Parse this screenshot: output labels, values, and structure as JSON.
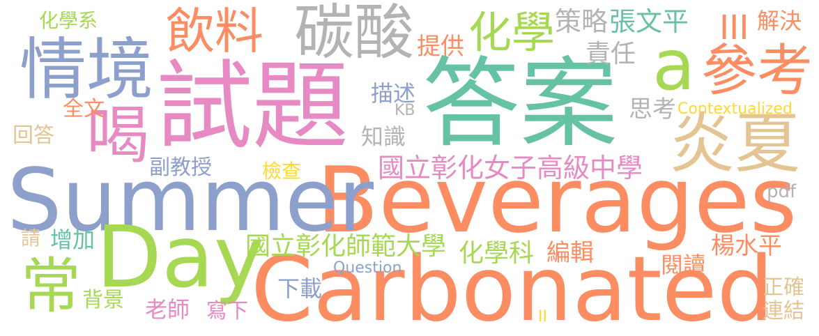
{
  "palette": {
    "teal": "#66C2A5",
    "orange": "#FC8D62",
    "blue": "#8DA0CB",
    "pink": "#E78AC3",
    "green": "#A6D854",
    "yellow": "#FFD92F",
    "tan": "#E5C494",
    "gray": "#B3B3B3"
  },
  "words": [
    {
      "id": "w-answer",
      "text": "答案",
      "color": "#66C2A5"
    },
    {
      "id": "w-test",
      "text": "試題",
      "color": "#E78AC3"
    },
    {
      "id": "w-beverages",
      "text": "Beverages",
      "color": "#FC8D62"
    },
    {
      "id": "w-summer",
      "text": "Summer",
      "color": "#8DA0CB"
    },
    {
      "id": "w-carbonated",
      "text": "Carbonated",
      "color": "#FC8D62"
    },
    {
      "id": "w-day",
      "text": "Day",
      "color": "#A6D854"
    },
    {
      "id": "w-carbonic-acid",
      "text": "碳酸",
      "color": "#B3B3B3"
    },
    {
      "id": "w-drinks",
      "text": "飲料",
      "color": "#FC8D62"
    },
    {
      "id": "w-context",
      "text": "情境",
      "color": "#8DA0CB"
    },
    {
      "id": "w-a",
      "text": "a",
      "color": "#A6D854"
    },
    {
      "id": "w-reference",
      "text": "參考",
      "color": "#FC8D62"
    },
    {
      "id": "w-hot-summer",
      "text": "炎夏",
      "color": "#E5C494"
    },
    {
      "id": "w-drink",
      "text": "喝",
      "color": "#E78AC3"
    },
    {
      "id": "w-often",
      "text": "常",
      "color": "#A6D854"
    },
    {
      "id": "w-chemistry",
      "text": "化學",
      "color": "#A6D854"
    },
    {
      "id": "w-ncgs",
      "text": "國立彰化女子高級中學",
      "color": "#E78AC3"
    },
    {
      "id": "w-ncue",
      "text": "國立彰化師範大學",
      "color": "#A6D854"
    },
    {
      "id": "w-strategy",
      "text": "策略",
      "color": "#B3B3B3"
    },
    {
      "id": "w-zhang",
      "text": "張文平",
      "color": "#66C2A5"
    },
    {
      "id": "w-responsibility",
      "text": "責任",
      "color": "#B3B3B3"
    },
    {
      "id": "w-solve",
      "text": "解決",
      "color": "#FC8D62"
    },
    {
      "id": "w-iii",
      "text": "III",
      "color": "#FC8D62"
    },
    {
      "id": "w-provide",
      "text": "提供",
      "color": "#FC8D62"
    },
    {
      "id": "w-chem-dept",
      "text": "化學系",
      "color": "#A6D854"
    },
    {
      "id": "w-describe",
      "text": "描述",
      "color": "#8DA0CB"
    },
    {
      "id": "w-kb",
      "text": "KB",
      "color": "#B3B3B3"
    },
    {
      "id": "w-think",
      "text": "思考",
      "color": "#B3B3B3"
    },
    {
      "id": "w-contextualized",
      "text": "Contextualized",
      "color": "#FFD92F"
    },
    {
      "id": "w-fulltext",
      "text": "全文",
      "color": "#FC8D62"
    },
    {
      "id": "w-answering",
      "text": "回答",
      "color": "#E5C494"
    },
    {
      "id": "w-knowledge",
      "text": "知識",
      "color": "#B3B3B3"
    },
    {
      "id": "w-assoc-prof",
      "text": "副教授",
      "color": "#8DA0CB"
    },
    {
      "id": "w-check",
      "text": "檢查",
      "color": "#FFD92F"
    },
    {
      "id": "w-pdf",
      "text": "pdf",
      "color": "#B3B3B3"
    },
    {
      "id": "w-please",
      "text": "請",
      "color": "#E5C494"
    },
    {
      "id": "w-increase",
      "text": "增加",
      "color": "#66C2A5"
    },
    {
      "id": "w-chem-subject",
      "text": "化學科",
      "color": "#A6D854"
    },
    {
      "id": "w-edit",
      "text": "編輯",
      "color": "#FC8D62"
    },
    {
      "id": "w-yang",
      "text": "楊水平",
      "color": "#FC8D62"
    },
    {
      "id": "w-reading",
      "text": "閱讀",
      "color": "#FC8D62"
    },
    {
      "id": "w-question",
      "text": "Question",
      "color": "#8DA0CB"
    },
    {
      "id": "w-background",
      "text": "背景",
      "color": "#A6D854"
    },
    {
      "id": "w-download",
      "text": "下載",
      "color": "#8DA0CB"
    },
    {
      "id": "w-correct",
      "text": "正確",
      "color": "#E5C494"
    },
    {
      "id": "w-teacher",
      "text": "老師",
      "color": "#E78AC3"
    },
    {
      "id": "w-write",
      "text": "寫下",
      "color": "#E78AC3"
    },
    {
      "id": "w-link",
      "text": "連結",
      "color": "#E5C494"
    },
    {
      "id": "w-ii",
      "text": "II",
      "color": "#FFD92F"
    }
  ]
}
